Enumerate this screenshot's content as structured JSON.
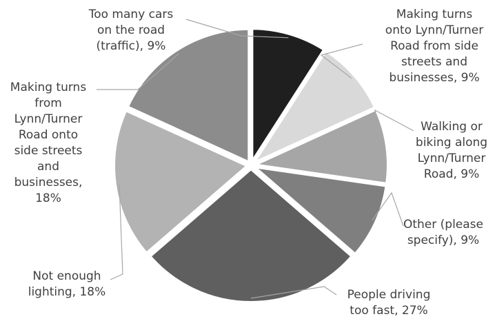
{
  "chart_data": {
    "type": "pie",
    "title": "",
    "legend": "none",
    "slices": [
      {
        "label_lines": [
          "Too many cars",
          "on the road",
          "(traffic), 9%"
        ],
        "value": 9,
        "color": "#1f1f1f"
      },
      {
        "label_lines": [
          "Making turns",
          "onto Lynn/Turner",
          "Road from side",
          "streets and",
          "businesses, 9%"
        ],
        "value": 9,
        "color": "#d9d9d9"
      },
      {
        "label_lines": [
          "Walking or",
          "biking along",
          "Lynn/Turner",
          "Road, 9%"
        ],
        "value": 9,
        "color": "#a6a6a6"
      },
      {
        "label_lines": [
          "Other (please",
          "specify), 9%"
        ],
        "value": 9,
        "color": "#7f7f7f"
      },
      {
        "label_lines": [
          "People driving",
          "too fast, 27%"
        ],
        "value": 27,
        "color": "#5f5f5f"
      },
      {
        "label_lines": [
          "Not enough",
          "lighting, 18%"
        ],
        "value": 18,
        "color": "#b3b3b3"
      },
      {
        "label_lines": [
          "Making turns",
          "from",
          "Lynn/Turner",
          "Road onto",
          "side streets",
          "and",
          "businesses,",
          "18%"
        ],
        "value": 18,
        "color": "#8c8c8c"
      }
    ]
  }
}
